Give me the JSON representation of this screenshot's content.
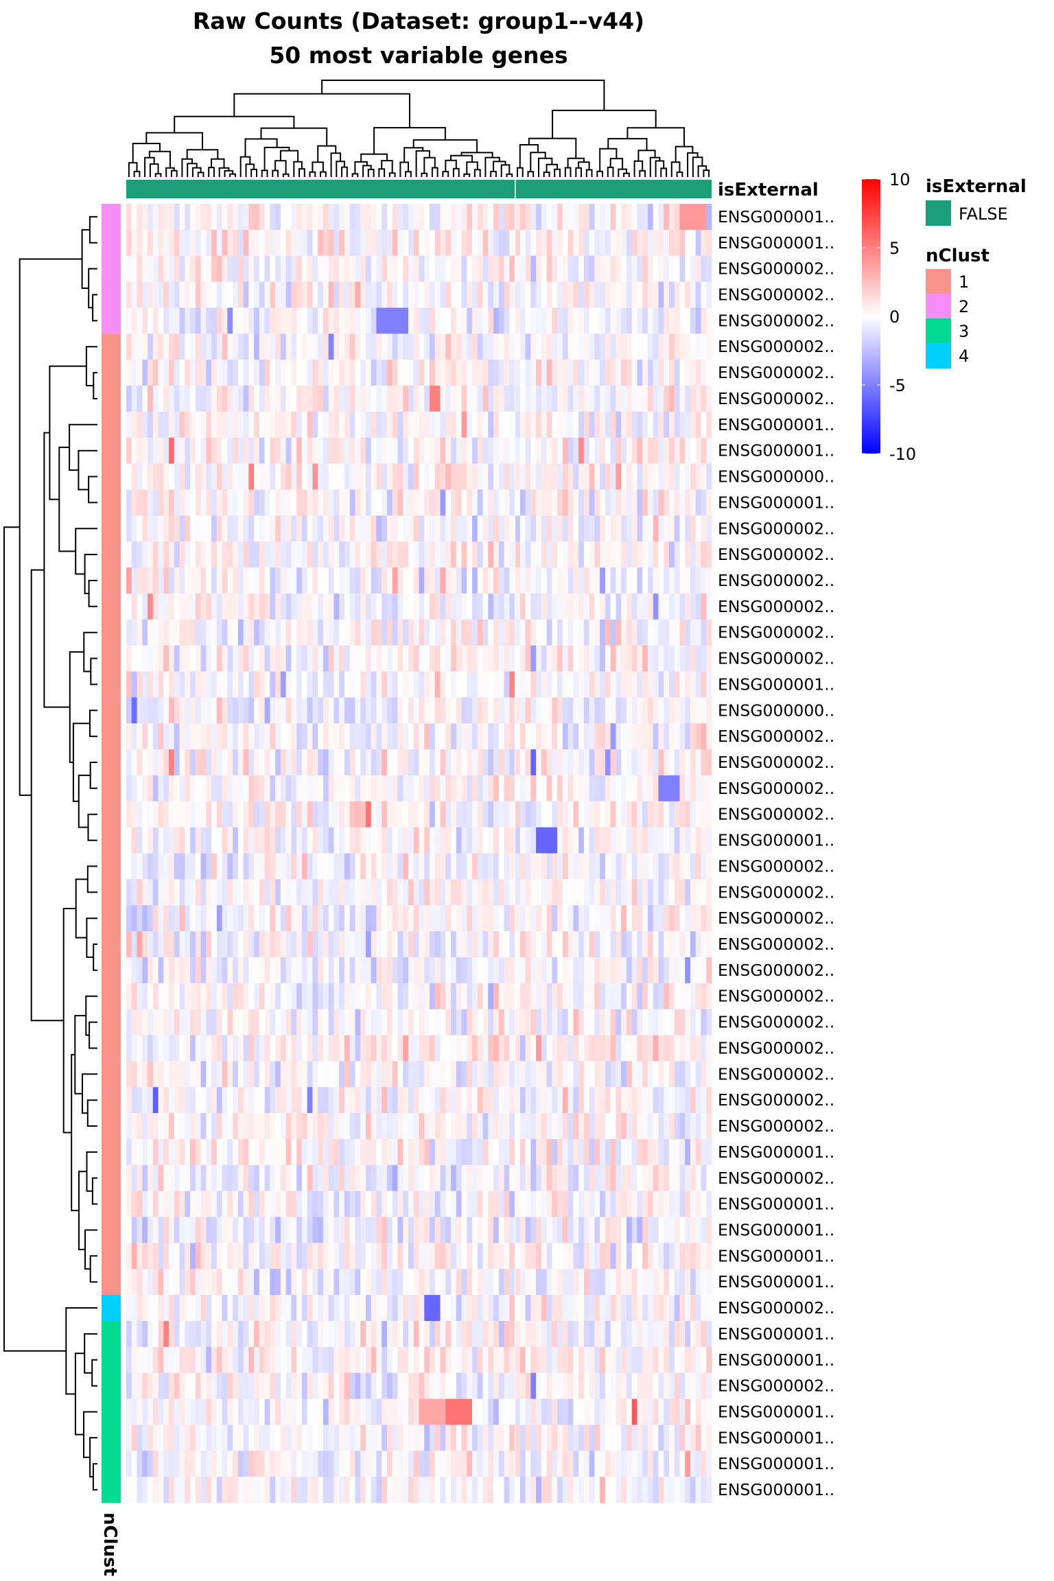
{
  "chart_data": {
    "type": "heatmap",
    "title_line1": "Raw Counts (Dataset: group1--v44)",
    "title_line2": "50 most variable genes",
    "n_columns": 110,
    "row_labels": [
      "ENSG000001..",
      "ENSG000001..",
      "ENSG000002..",
      "ENSG000002..",
      "ENSG000002..",
      "ENSG000002..",
      "ENSG000002..",
      "ENSG000002..",
      "ENSG000001..",
      "ENSG000001..",
      "ENSG000000..",
      "ENSG000001..",
      "ENSG000002..",
      "ENSG000002..",
      "ENSG000002..",
      "ENSG000002..",
      "ENSG000002..",
      "ENSG000002..",
      "ENSG000001..",
      "ENSG000000..",
      "ENSG000002..",
      "ENSG000002..",
      "ENSG000002..",
      "ENSG000002..",
      "ENSG000001..",
      "ENSG000002..",
      "ENSG000002..",
      "ENSG000002..",
      "ENSG000002..",
      "ENSG000002..",
      "ENSG000002..",
      "ENSG000002..",
      "ENSG000002..",
      "ENSG000002..",
      "ENSG000002..",
      "ENSG000002..",
      "ENSG000001..",
      "ENSG000002..",
      "ENSG000001..",
      "ENSG000001..",
      "ENSG000001..",
      "ENSG000001..",
      "ENSG000002..",
      "ENSG000001..",
      "ENSG000001..",
      "ENSG000002..",
      "ENSG000001..",
      "ENSG000001..",
      "ENSG000001..",
      "ENSG000001.."
    ],
    "row_clusters": [
      2,
      2,
      2,
      2,
      2,
      1,
      1,
      1,
      1,
      1,
      1,
      1,
      1,
      1,
      1,
      1,
      1,
      1,
      1,
      1,
      1,
      1,
      1,
      1,
      1,
      1,
      1,
      1,
      1,
      1,
      1,
      1,
      1,
      1,
      1,
      1,
      1,
      1,
      1,
      1,
      1,
      1,
      4,
      3,
      3,
      3,
      3,
      3,
      3,
      3
    ],
    "column_annotation": {
      "name": "isExternal",
      "value": "FALSE"
    },
    "row_annotation_label": "nClust",
    "color_scale": {
      "min": -10,
      "max": 10,
      "low": "#0000ff",
      "mid": "#ffffff",
      "high": "#ff0000",
      "ticks": [
        "10",
        "5",
        "0",
        "-5",
        "-10"
      ]
    },
    "legend": {
      "isExternal": {
        "title": "isExternal",
        "items": [
          {
            "label": "FALSE",
            "color": "#1b9e77"
          }
        ]
      },
      "nClust": {
        "title": "nClust",
        "items": [
          {
            "label": "1",
            "color": "#f8938a"
          },
          {
            "label": "2",
            "color": "#f78ef7"
          },
          {
            "label": "3",
            "color": "#00db91"
          },
          {
            "label": "4",
            "color": "#00d0fb"
          }
        ]
      }
    },
    "highlights": [
      {
        "row": 46,
        "from": 60,
        "to": 64,
        "value": 5.5
      },
      {
        "row": 46,
        "from": 55,
        "to": 59,
        "value": 3.5
      },
      {
        "row": 24,
        "from": 77,
        "to": 80,
        "value": -6
      },
      {
        "row": 4,
        "from": 47,
        "to": 52,
        "value": -5
      },
      {
        "row": 42,
        "from": 56,
        "to": 58,
        "value": -6
      },
      {
        "row": 7,
        "from": 57,
        "to": 58,
        "value": 5
      },
      {
        "row": 22,
        "from": 100,
        "to": 103,
        "value": -5
      },
      {
        "row": 0,
        "from": 104,
        "to": 108,
        "value": 4
      }
    ],
    "seed": 44
  }
}
